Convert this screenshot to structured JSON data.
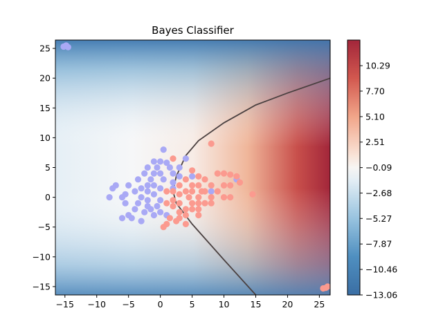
{
  "chart_data": {
    "type": "contour",
    "title": "Bayes Classifier",
    "xlabel": "",
    "ylabel": "",
    "xlim": [
      -16.5,
      26.7
    ],
    "ylim": [
      -16.4,
      26.4
    ],
    "xticks": [
      -15,
      -10,
      -5,
      0,
      5,
      10,
      15,
      20,
      25
    ],
    "yticks": [
      -15,
      -10,
      -5,
      0,
      5,
      10,
      15,
      20,
      25
    ],
    "colormap": "RdBu_r",
    "colorbar": {
      "range": [
        -13.06,
        12.9
      ],
      "ticks": [
        -13.06,
        -10.46,
        -7.87,
        -5.27,
        -2.68,
        -0.09,
        2.51,
        5.1,
        7.7,
        10.29
      ]
    },
    "decision_boundary": {
      "description": "parabola opening to the right",
      "points": [
        [
          15,
          -16.4
        ],
        [
          10,
          -10.5
        ],
        [
          5,
          -4.5
        ],
        [
          2.5,
          -1
        ],
        [
          2,
          1
        ],
        [
          2.5,
          3.5
        ],
        [
          4,
          7
        ],
        [
          6,
          9.5
        ],
        [
          10,
          12.5
        ],
        [
          15,
          15.5
        ],
        [
          20,
          17.5
        ],
        [
          26.7,
          20
        ]
      ]
    },
    "series": [
      {
        "color": "#a9a9f5",
        "points": [
          [
            -15.2,
            25.3
          ],
          [
            -14.8,
            25.5
          ],
          [
            -14.5,
            25.2
          ],
          [
            0.5,
            8
          ],
          [
            4,
            6.5
          ],
          [
            -1,
            6
          ],
          [
            0,
            6
          ],
          [
            1,
            5.8
          ],
          [
            3,
            5
          ],
          [
            -2,
            5
          ],
          [
            -0.5,
            5
          ],
          [
            1.5,
            5
          ],
          [
            2,
            4
          ],
          [
            -2.5,
            4
          ],
          [
            -1,
            4
          ],
          [
            0,
            4
          ],
          [
            3,
            3.5
          ],
          [
            5,
            3.5
          ],
          [
            -3.5,
            3
          ],
          [
            -1.5,
            3
          ],
          [
            0.5,
            3
          ],
          [
            2,
            2.5
          ],
          [
            -2,
            2
          ],
          [
            -1,
            2
          ],
          [
            -5,
            2
          ],
          [
            -3,
            1.5
          ],
          [
            0,
            1.5
          ],
          [
            2,
            1.5
          ],
          [
            -7,
            2
          ],
          [
            -7.5,
            1.5
          ],
          [
            -4,
            1
          ],
          [
            -2,
            1
          ],
          [
            -1,
            0.5
          ],
          [
            -5.5,
            0.5
          ],
          [
            -3,
            0
          ],
          [
            -8,
            0
          ],
          [
            -6,
            0
          ],
          [
            -2,
            -0.5
          ],
          [
            0,
            -0.5
          ],
          [
            -5.5,
            -1
          ],
          [
            -3.5,
            -1
          ],
          [
            -2,
            -1.5
          ],
          [
            -0.5,
            -1.5
          ],
          [
            -4,
            -2
          ],
          [
            -2.5,
            -2.5
          ],
          [
            -1.5,
            -2
          ],
          [
            0,
            -2.5
          ],
          [
            -5,
            -3
          ],
          [
            -4.5,
            -3.5
          ],
          [
            -3,
            -4
          ],
          [
            -1,
            -3
          ],
          [
            -6,
            -3.5
          ],
          [
            1,
            -3
          ],
          [
            12,
            3
          ],
          [
            8,
            1
          ]
        ]
      },
      {
        "color": "#fb9a8f",
        "points": [
          [
            26,
            -15.2
          ],
          [
            25.6,
            -15.3
          ],
          [
            26.3,
            -15
          ],
          [
            2,
            6.5
          ],
          [
            8,
            9
          ],
          [
            5,
            4.5
          ],
          [
            9,
            4
          ],
          [
            10,
            4
          ],
          [
            11,
            3.8
          ],
          [
            12,
            3.5
          ],
          [
            6,
            3.5
          ],
          [
            7,
            3
          ],
          [
            4,
            3
          ],
          [
            3,
            2
          ],
          [
            5,
            2
          ],
          [
            6,
            2
          ],
          [
            8,
            2
          ],
          [
            10,
            2
          ],
          [
            11,
            2
          ],
          [
            12.5,
            2.5
          ],
          [
            4,
            1
          ],
          [
            5,
            1
          ],
          [
            6.5,
            1
          ],
          [
            7,
            1
          ],
          [
            9,
            1
          ],
          [
            1,
            1
          ],
          [
            2,
            1
          ],
          [
            3,
            0.5
          ],
          [
            4.5,
            0
          ],
          [
            6,
            0
          ],
          [
            8,
            0
          ],
          [
            10,
            0
          ],
          [
            11,
            0
          ],
          [
            14.5,
            0.5
          ],
          [
            2,
            -0.5
          ],
          [
            3,
            -1
          ],
          [
            5,
            -1
          ],
          [
            6,
            -1
          ],
          [
            7,
            -1
          ],
          [
            8,
            -1
          ],
          [
            1,
            -1
          ],
          [
            2,
            -1.5
          ],
          [
            4,
            -2
          ],
          [
            5,
            -2
          ],
          [
            6,
            -2
          ],
          [
            3,
            -2.5
          ],
          [
            4,
            -3
          ],
          [
            6,
            -3
          ],
          [
            1.5,
            -3.5
          ],
          [
            3,
            -3.5
          ],
          [
            2.5,
            -4
          ],
          [
            1,
            -4.5
          ],
          [
            4,
            -4.5
          ],
          [
            0.5,
            -5
          ]
        ]
      }
    ]
  }
}
